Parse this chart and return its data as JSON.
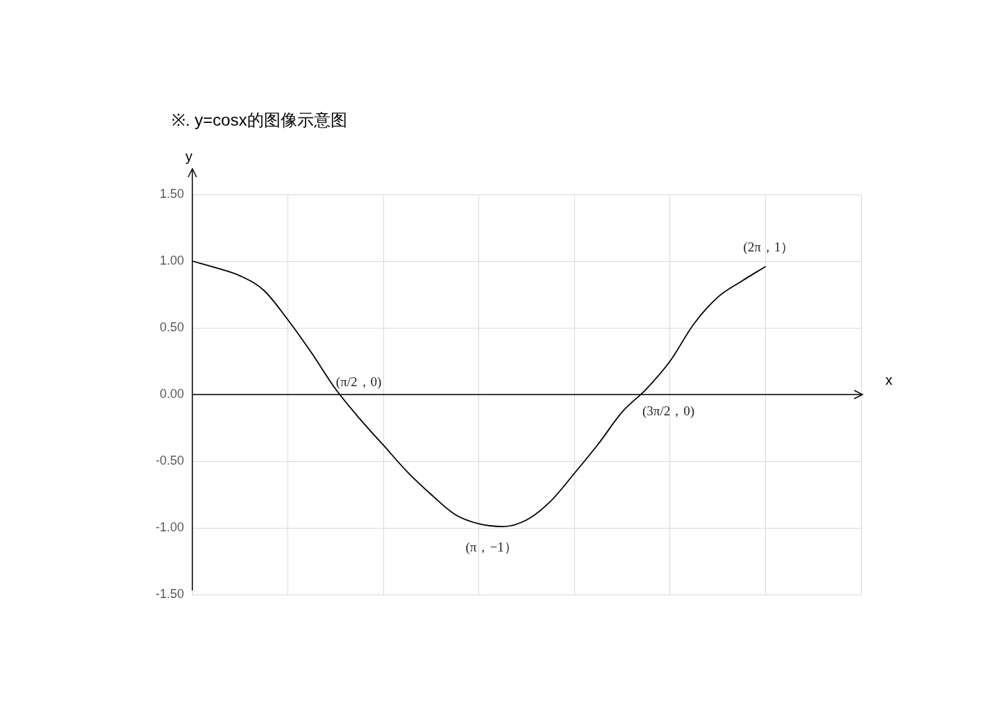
{
  "chart_data": {
    "type": "line",
    "title": "※. y=cosx的图像示意图",
    "xlabel": "x",
    "ylabel": "y",
    "categories": [
      null,
      null,
      null,
      null,
      null,
      null,
      null,
      null,
      null,
      null,
      null,
      null,
      null,
      null,
      null,
      null,
      null,
      null,
      null,
      null,
      null,
      null,
      null,
      null,
      null,
      null,
      null,
      null,
      null
    ],
    "series": [
      {
        "color": "#000000",
        "values": [
          1.0,
          0.95,
          0.89,
          0.78,
          0.56,
          0.31,
          0.04,
          -0.18,
          -0.38,
          -0.58,
          -0.75,
          -0.9,
          -0.97,
          -0.99,
          -0.94,
          -0.8,
          -0.59,
          -0.37,
          -0.13,
          0.04,
          0.25,
          0.53,
          0.73,
          0.85,
          0.96,
          null,
          null,
          null,
          null
        ]
      }
    ],
    "ylim": [
      -1.5,
      1.5
    ],
    "yticks": [
      {
        "value": -1.5,
        "label": "-1.50"
      },
      {
        "value": -1,
        "label": "-1.00"
      },
      {
        "value": -0.5,
        "label": "-0.50"
      },
      {
        "value": 0,
        "label": "0.00"
      },
      {
        "value": 0.5,
        "label": "0.50"
      },
      {
        "value": 1,
        "label": "1.00"
      },
      {
        "value": 1.5,
        "label": "1.50"
      }
    ],
    "grid": true,
    "legend": false,
    "marker": "none",
    "line_style": "solid",
    "annotations": [
      "(π/2，0)",
      "(π，−1）",
      "(3π/2，0)",
      "(2π，1）"
    ]
  }
}
